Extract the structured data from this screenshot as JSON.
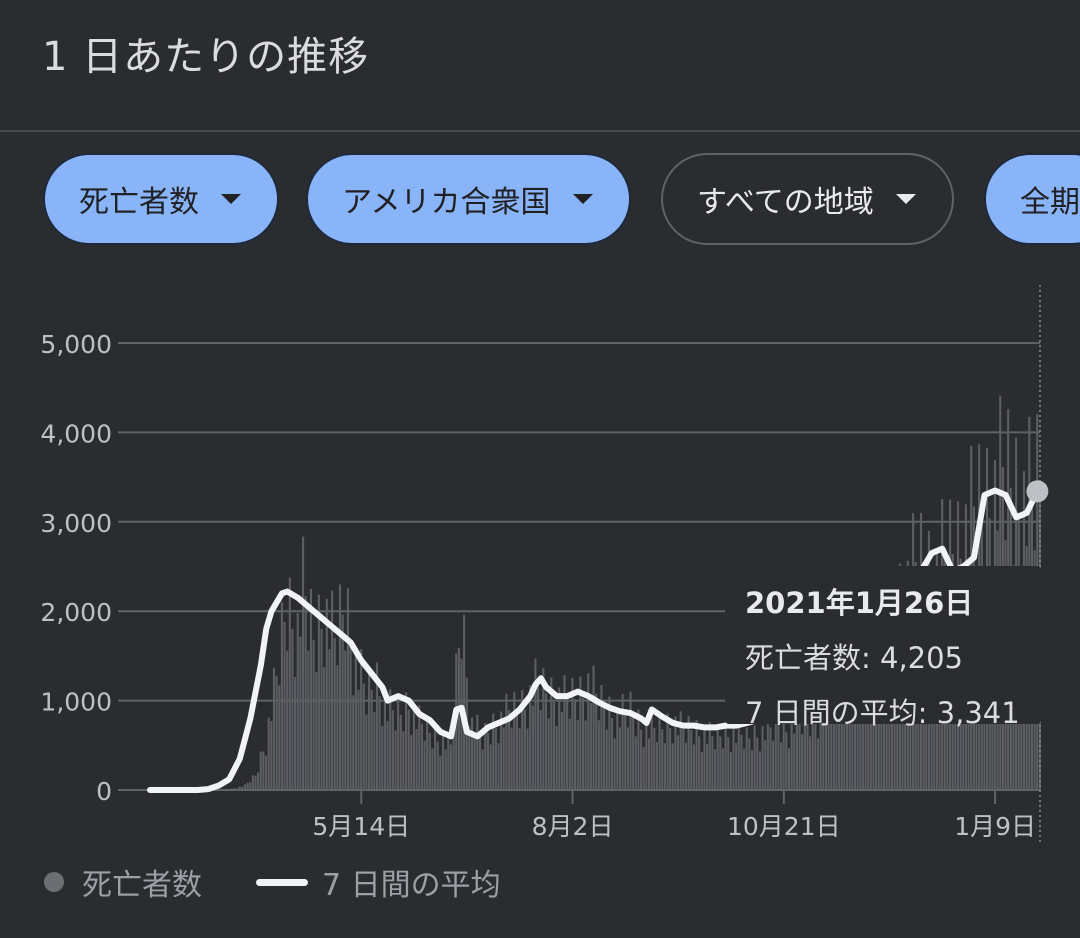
{
  "header": {
    "title": "1 日あたりの推移"
  },
  "filters": [
    {
      "label": "死亡者数",
      "style": "filled"
    },
    {
      "label": "アメリカ合衆国",
      "style": "filled"
    },
    {
      "label": "すべての地域",
      "style": "outline"
    },
    {
      "label": "全期",
      "style": "filled"
    }
  ],
  "tooltip": {
    "date": "2021年1月26日",
    "deaths_label": "死亡者数: 4,205",
    "avg_label": "7 日間の平均: 3,341"
  },
  "legend": {
    "deaths": "死亡者数",
    "avg": "7 日間の平均"
  },
  "colors": {
    "accent": "#8ab4f8",
    "bars": "#5c5e63",
    "line": "#f1f3f4",
    "grid": "#5f6368"
  },
  "chart_data": {
    "type": "bar",
    "ylim": [
      0,
      5000
    ],
    "ytick_labels": [
      "0",
      "1,000",
      "2,000",
      "3,000",
      "4,000",
      "5,000"
    ],
    "yticks": [
      0,
      1000,
      2000,
      3000,
      4000,
      5000
    ],
    "xtick_labels": [
      "5月14日",
      "8月2日",
      "10月21日",
      "1月9日"
    ],
    "xticks_day": [
      80,
      160,
      240,
      320
    ],
    "x_range_days": [
      0,
      337
    ],
    "daily_deaths_sampled": [
      [
        20,
        0
      ],
      [
        30,
        10
      ],
      [
        36,
        60
      ],
      [
        40,
        200
      ],
      [
        44,
        700
      ],
      [
        48,
        1500
      ],
      [
        50,
        2100
      ],
      [
        52,
        2600
      ],
      [
        54,
        2400
      ],
      [
        56,
        2200
      ],
      [
        58,
        2700
      ],
      [
        62,
        2100
      ],
      [
        66,
        2500
      ],
      [
        70,
        2000
      ],
      [
        74,
        2600
      ],
      [
        78,
        1700
      ],
      [
        82,
        1300
      ],
      [
        86,
        1500
      ],
      [
        90,
        1100
      ],
      [
        94,
        1000
      ],
      [
        98,
        1200
      ],
      [
        102,
        900
      ],
      [
        106,
        800
      ],
      [
        110,
        700
      ],
      [
        114,
        600
      ],
      [
        118,
        2450
      ],
      [
        122,
        900
      ],
      [
        126,
        700
      ],
      [
        130,
        900
      ],
      [
        134,
        1000
      ],
      [
        138,
        1100
      ],
      [
        142,
        1200
      ],
      [
        146,
        1400
      ],
      [
        150,
        1350
      ],
      [
        154,
        1300
      ],
      [
        158,
        1200
      ],
      [
        162,
        1300
      ],
      [
        166,
        1450
      ],
      [
        170,
        1200
      ],
      [
        174,
        1100
      ],
      [
        178,
        1000
      ],
      [
        182,
        1100
      ],
      [
        186,
        900
      ],
      [
        190,
        800
      ],
      [
        194,
        850
      ],
      [
        198,
        950
      ],
      [
        202,
        800
      ],
      [
        206,
        850
      ],
      [
        210,
        750
      ],
      [
        214,
        700
      ],
      [
        218,
        800
      ],
      [
        222,
        750
      ],
      [
        226,
        700
      ],
      [
        230,
        780
      ],
      [
        234,
        800
      ],
      [
        238,
        900
      ],
      [
        242,
        850
      ],
      [
        246,
        950
      ],
      [
        250,
        1000
      ],
      [
        256,
        1100
      ],
      [
        262,
        1300
      ],
      [
        268,
        1500
      ],
      [
        274,
        1900
      ],
      [
        280,
        2400
      ],
      [
        286,
        2800
      ],
      [
        292,
        3100
      ],
      [
        298,
        3000
      ],
      [
        304,
        3300
      ],
      [
        310,
        3600
      ],
      [
        316,
        4000
      ],
      [
        320,
        4100
      ],
      [
        324,
        4300
      ],
      [
        328,
        4150
      ],
      [
        332,
        3900
      ],
      [
        336,
        4205
      ]
    ],
    "series": [
      {
        "name": "7 日間の平均",
        "points": [
          [
            0,
            0
          ],
          [
            18,
            0
          ],
          [
            22,
            10
          ],
          [
            26,
            50
          ],
          [
            30,
            120
          ],
          [
            34,
            350
          ],
          [
            38,
            800
          ],
          [
            42,
            1400
          ],
          [
            44,
            1800
          ],
          [
            46,
            2000
          ],
          [
            50,
            2200
          ],
          [
            52,
            2220
          ],
          [
            56,
            2150
          ],
          [
            60,
            2050
          ],
          [
            64,
            1950
          ],
          [
            68,
            1850
          ],
          [
            72,
            1750
          ],
          [
            76,
            1650
          ],
          [
            80,
            1450
          ],
          [
            84,
            1300
          ],
          [
            88,
            1150
          ],
          [
            90,
            1000
          ],
          [
            94,
            1050
          ],
          [
            98,
            1000
          ],
          [
            102,
            850
          ],
          [
            106,
            780
          ],
          [
            110,
            650
          ],
          [
            114,
            600
          ],
          [
            116,
            900
          ],
          [
            118,
            920
          ],
          [
            120,
            650
          ],
          [
            124,
            600
          ],
          [
            128,
            700
          ],
          [
            132,
            750
          ],
          [
            136,
            800
          ],
          [
            140,
            900
          ],
          [
            144,
            1050
          ],
          [
            146,
            1180
          ],
          [
            148,
            1250
          ],
          [
            150,
            1150
          ],
          [
            154,
            1050
          ],
          [
            158,
            1050
          ],
          [
            162,
            1100
          ],
          [
            166,
            1050
          ],
          [
            170,
            980
          ],
          [
            174,
            920
          ],
          [
            178,
            880
          ],
          [
            182,
            860
          ],
          [
            186,
            800
          ],
          [
            188,
            750
          ],
          [
            190,
            900
          ],
          [
            194,
            820
          ],
          [
            198,
            750
          ],
          [
            202,
            720
          ],
          [
            206,
            720
          ],
          [
            210,
            700
          ],
          [
            214,
            700
          ],
          [
            218,
            720
          ],
          [
            222,
            720
          ],
          [
            226,
            750
          ],
          [
            230,
            780
          ]
        ]
      },
      {
        "name": "7 日間の平均 (right)",
        "points": [
          [
            288,
            2200
          ],
          [
            292,
            2450
          ],
          [
            296,
            2650
          ],
          [
            300,
            2700
          ],
          [
            304,
            2450
          ],
          [
            308,
            2500
          ],
          [
            312,
            2600
          ],
          [
            316,
            3300
          ],
          [
            320,
            3350
          ],
          [
            324,
            3300
          ],
          [
            328,
            3050
          ],
          [
            332,
            3100
          ],
          [
            336,
            3341
          ]
        ]
      }
    ]
  }
}
